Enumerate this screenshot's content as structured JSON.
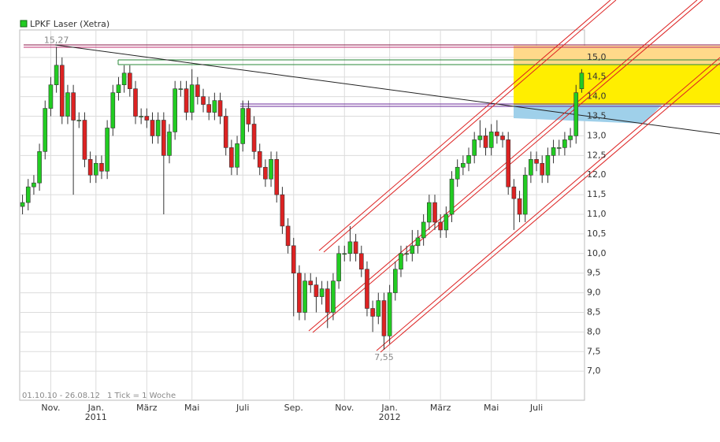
{
  "chart_data": {
    "type": "candlestick",
    "legend": "LPKF Laser (Xetra)",
    "color_up": "#22cc22",
    "color_down": "#dd2222",
    "period": "01.10.10 - 26.08.12",
    "tick_note": "1 Tick = 1 Woche",
    "high_label": "15,27",
    "low_label": "7,55",
    "xlim": [
      -0.5,
      99.5
    ],
    "xticks": [
      {
        "value": 5,
        "label": "Nov."
      },
      {
        "value": 13,
        "label": "Jan."
      },
      {
        "value": 22,
        "label": "März"
      },
      {
        "value": 30,
        "label": "Mai"
      },
      {
        "value": 39,
        "label": "Juli"
      },
      {
        "value": 48,
        "label": "Sep."
      },
      {
        "value": 57,
        "label": "Nov."
      },
      {
        "value": 65,
        "label": "Jan."
      },
      {
        "value": 74,
        "label": "März"
      },
      {
        "value": 83,
        "label": "Mai"
      },
      {
        "value": 91,
        "label": "Juli"
      }
    ],
    "years": [
      {
        "value": 13,
        "label": "2011"
      },
      {
        "value": 65,
        "label": "2012"
      }
    ],
    "ylim": [
      6.26,
      15.7
    ],
    "yticks": [
      {
        "value": 7,
        "label": "7,0"
      },
      {
        "value": 7.5,
        "label": "7,5"
      },
      {
        "value": 8,
        "label": "8,0"
      },
      {
        "value": 8.5,
        "label": "8,5"
      },
      {
        "value": 9,
        "label": "9,0"
      },
      {
        "value": 9.5,
        "label": "9,5"
      },
      {
        "value": 10,
        "label": "10,0"
      },
      {
        "value": 10.5,
        "label": "10,5"
      },
      {
        "value": 11,
        "label": "11,0"
      },
      {
        "value": 11.5,
        "label": "11,5"
      },
      {
        "value": 12,
        "label": "12,0"
      },
      {
        "value": 12.5,
        "label": "12,5"
      },
      {
        "value": 13,
        "label": "13,0"
      },
      {
        "value": 13.5,
        "label": "13,5"
      },
      {
        "value": 14,
        "label": "14,0"
      },
      {
        "value": 14.5,
        "label": "14,5"
      },
      {
        "value": 15,
        "label": "15,0"
      }
    ],
    "grid": true,
    "open": [
      11.2,
      11.3,
      11.7,
      11.8,
      12.6,
      13.7,
      14.3,
      14.8,
      13.5,
      14.1,
      13.4,
      13.4,
      12.4,
      12.0,
      12.3,
      12.1,
      13.2,
      14.1,
      14.3,
      14.6,
      14.2,
      13.5,
      13.5,
      13.4,
      13.0,
      13.4,
      12.5,
      13.1,
      14.2,
      14.2,
      13.6,
      14.3,
      14.0,
      13.8,
      13.6,
      13.9,
      13.5,
      12.7,
      12.2,
      12.8,
      13.7,
      13.3,
      12.6,
      12.2,
      11.9,
      12.4,
      11.5,
      10.7,
      10.2,
      9.5,
      8.5,
      9.3,
      9.2,
      8.9,
      9.1,
      8.5,
      9.3,
      10.0,
      10.0,
      10.3,
      10.0,
      9.6,
      8.6,
      8.4,
      8.8,
      7.9,
      9.0,
      9.6,
      10.0,
      10.0,
      10.2,
      10.4,
      10.8,
      11.3,
      10.8,
      10.6,
      11.0,
      11.9,
      12.2,
      12.3,
      12.5,
      12.9,
      13.0,
      12.7,
      13.1,
      13.0,
      12.9,
      11.7,
      11.4,
      11.0,
      12.0,
      12.4,
      12.3,
      12.0,
      12.5,
      12.7,
      12.7,
      12.9,
      13.0,
      14.2
    ],
    "high": [
      11.5,
      11.9,
      12.0,
      12.8,
      13.9,
      14.5,
      15.27,
      15.0,
      14.3,
      14.3,
      13.6,
      13.6,
      12.6,
      12.5,
      12.5,
      13.4,
      14.3,
      14.5,
      14.8,
      14.8,
      14.4,
      13.7,
      13.7,
      13.6,
      13.6,
      13.6,
      13.3,
      14.4,
      14.4,
      14.4,
      14.7,
      14.5,
      14.2,
      14.0,
      14.1,
      14.1,
      13.7,
      12.9,
      13.0,
      13.9,
      13.9,
      13.5,
      12.8,
      12.4,
      12.6,
      12.6,
      11.7,
      10.9,
      10.4,
      9.7,
      9.5,
      9.5,
      9.4,
      9.3,
      9.3,
      9.5,
      10.2,
      10.2,
      10.7,
      10.5,
      10.2,
      9.8,
      8.8,
      9.0,
      9.0,
      9.2,
      9.8,
      10.2,
      10.2,
      10.6,
      10.6,
      11.0,
      11.5,
      11.5,
      11.0,
      11.2,
      12.1,
      12.4,
      12.5,
      12.7,
      13.1,
      13.4,
      13.2,
      13.3,
      13.4,
      13.1,
      13.1,
      11.9,
      11.6,
      12.2,
      12.6,
      12.6,
      12.5,
      12.7,
      12.9,
      12.9,
      13.1,
      13.2,
      14.3,
      14.7
    ],
    "low": [
      11.0,
      11.1,
      11.5,
      11.6,
      12.4,
      13.5,
      14.1,
      13.3,
      13.3,
      11.5,
      13.2,
      12.2,
      11.8,
      11.8,
      11.9,
      11.9,
      13.0,
      13.9,
      14.1,
      14.0,
      13.3,
      13.3,
      13.2,
      12.8,
      12.8,
      11.0,
      12.3,
      12.9,
      14.0,
      13.4,
      13.4,
      13.8,
      13.6,
      13.4,
      13.4,
      13.3,
      12.5,
      12.0,
      12.0,
      12.6,
      13.1,
      12.4,
      12.0,
      11.7,
      11.7,
      11.3,
      10.5,
      10.0,
      8.4,
      8.3,
      8.3,
      9.0,
      8.5,
      8.7,
      8.1,
      8.3,
      9.1,
      9.8,
      9.8,
      9.8,
      9.4,
      8.4,
      8.0,
      8.2,
      7.55,
      7.7,
      8.8,
      9.4,
      9.8,
      9.8,
      10.0,
      10.2,
      10.6,
      10.6,
      10.4,
      10.4,
      10.8,
      11.7,
      12.0,
      12.1,
      12.3,
      12.7,
      12.5,
      12.5,
      12.8,
      12.7,
      11.5,
      10.6,
      10.8,
      10.8,
      11.8,
      12.1,
      11.8,
      11.8,
      12.3,
      12.5,
      12.5,
      12.7,
      12.8,
      14.1
    ],
    "close": [
      11.3,
      11.7,
      11.8,
      12.6,
      13.7,
      14.3,
      14.8,
      13.5,
      14.1,
      13.4,
      13.4,
      12.4,
      12.0,
      12.3,
      12.1,
      13.2,
      14.1,
      14.3,
      14.6,
      14.2,
      13.5,
      13.5,
      13.4,
      13.0,
      13.4,
      12.5,
      13.1,
      14.2,
      14.2,
      13.6,
      14.3,
      14.0,
      13.8,
      13.6,
      13.9,
      13.5,
      12.7,
      12.2,
      12.8,
      13.7,
      13.3,
      12.6,
      12.2,
      11.9,
      12.4,
      11.5,
      10.7,
      10.2,
      9.5,
      8.5,
      9.3,
      9.2,
      8.9,
      9.1,
      8.5,
      9.3,
      10.0,
      10.0,
      10.3,
      10.0,
      9.6,
      8.6,
      8.4,
      8.8,
      7.9,
      9.0,
      9.6,
      10.0,
      10.0,
      10.2,
      10.4,
      10.8,
      11.3,
      10.8,
      10.6,
      11.0,
      11.9,
      12.2,
      12.3,
      12.5,
      12.9,
      13.0,
      12.7,
      13.1,
      13.0,
      12.9,
      11.7,
      11.4,
      11.0,
      12.0,
      12.4,
      12.3,
      12.0,
      12.5,
      12.7,
      12.7,
      12.9,
      13.0,
      14.1,
      14.6
    ]
  }
}
